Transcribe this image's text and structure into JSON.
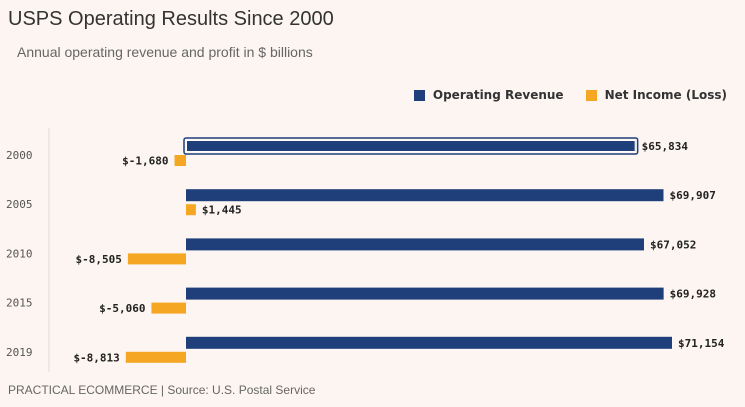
{
  "header": {
    "title": "USPS Operating Results Since 2000",
    "subtitle": "Annual operating revenue and profit in $ billions"
  },
  "footer": {
    "source": "PRACTICAL ECOMMERCE | Source: U.S. Postal Service"
  },
  "colors": {
    "revenue": "#1f3f7a",
    "income": "#f5a623",
    "highlight_outline": "#1f3f7a"
  },
  "chart_data": {
    "type": "bar",
    "orientation": "horizontal",
    "categories": [
      "2000",
      "2005",
      "2010",
      "2015",
      "2019"
    ],
    "series": [
      {
        "name": "Operating Revenue",
        "values": [
          65834,
          69907,
          67052,
          69928,
          71154
        ]
      },
      {
        "name": "Net Income (Loss)",
        "values": [
          -1680,
          1445,
          -8505,
          -5060,
          -8813
        ]
      }
    ],
    "value_labels": {
      "revenue": [
        "$65,834",
        "$69,907",
        "$67,052",
        "$69,928",
        "$71,154"
      ],
      "income": [
        "$-1,680",
        "$1,445",
        "$-8,505",
        "$-5,060",
        "$-8,813"
      ]
    },
    "legend_position": "top-right",
    "grid": false,
    "highlighted_category": "2000"
  }
}
